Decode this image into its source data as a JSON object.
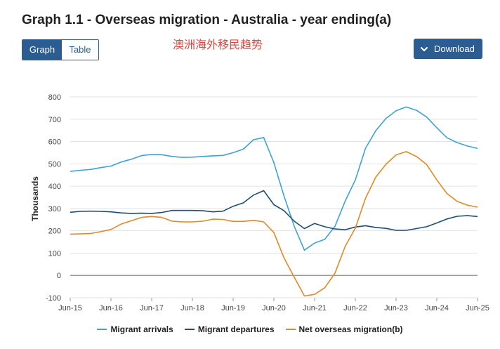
{
  "page": {
    "title": "Graph 1.1 - Overseas migration - Australia - year ending(a)",
    "annotation": "澳洲海外移民趋势",
    "toggle": {
      "graph_label": "Graph",
      "table_label": "Table",
      "active": "Graph"
    },
    "download_label": "Download"
  },
  "chart_data": {
    "type": "line",
    "title": "Graph 1.1 - Overseas migration - Australia - year ending(a)",
    "xlabel": "",
    "ylabel": "Thousands",
    "ylim": [
      -100,
      800
    ],
    "yticks": [
      -100,
      0,
      100,
      200,
      300,
      400,
      500,
      600,
      700,
      800
    ],
    "xlim": [
      "Jun-15",
      "Jun-25"
    ],
    "xticks": [
      "Jun-15",
      "Jun-16",
      "Jun-17",
      "Jun-18",
      "Jun-19",
      "Jun-20",
      "Jun-21",
      "Jun-22",
      "Jun-23",
      "Jun-24",
      "Jun-25"
    ],
    "grid": true,
    "legend_position": "bottom",
    "x": [
      "Jun-15",
      "Sep-15",
      "Dec-15",
      "Mar-16",
      "Jun-16",
      "Sep-16",
      "Dec-16",
      "Mar-17",
      "Jun-17",
      "Sep-17",
      "Dec-17",
      "Mar-18",
      "Jun-18",
      "Sep-18",
      "Dec-18",
      "Mar-19",
      "Jun-19",
      "Sep-19",
      "Dec-19",
      "Mar-20",
      "Jun-20",
      "Sep-20",
      "Dec-20",
      "Mar-21",
      "Jun-21",
      "Sep-21",
      "Dec-21",
      "Mar-22",
      "Jun-22",
      "Sep-22",
      "Dec-22",
      "Mar-23",
      "Jun-23",
      "Sep-23",
      "Dec-23",
      "Mar-24",
      "Jun-24",
      "Sep-24",
      "Dec-24",
      "Mar-25",
      "Jun-25"
    ],
    "series": [
      {
        "name": "Migrant arrivals",
        "color": "#3ea2d6",
        "values": [
          466,
          471,
          475,
          483,
          490,
          508,
          521,
          537,
          542,
          541,
          533,
          529,
          530,
          533,
          536,
          538,
          550,
          566,
          608,
          618,
          505,
          355,
          220,
          113,
          145,
          162,
          220,
          333,
          428,
          570,
          648,
          703,
          738,
          755,
          740,
          710,
          662,
          617,
          595,
          580,
          569
        ]
      },
      {
        "name": "Migrant departures",
        "color": "#1d4e72",
        "values": [
          283,
          287,
          288,
          287,
          285,
          280,
          278,
          279,
          278,
          282,
          291,
          291,
          291,
          290,
          285,
          288,
          310,
          325,
          360,
          380,
          317,
          290,
          243,
          210,
          233,
          218,
          208,
          205,
          217,
          223,
          215,
          211,
          202,
          202,
          210,
          218,
          235,
          253,
          265,
          268,
          264
        ]
      },
      {
        "name": "Net overseas migration(b)",
        "color": "#e08a23",
        "values": [
          185,
          186,
          188,
          196,
          206,
          230,
          245,
          260,
          264,
          260,
          243,
          240,
          240,
          243,
          252,
          251,
          242,
          242,
          247,
          240,
          192,
          78,
          -8,
          -92,
          -85,
          -55,
          10,
          130,
          212,
          346,
          440,
          498,
          540,
          555,
          533,
          497,
          428,
          367,
          332,
          315,
          306
        ]
      }
    ]
  }
}
